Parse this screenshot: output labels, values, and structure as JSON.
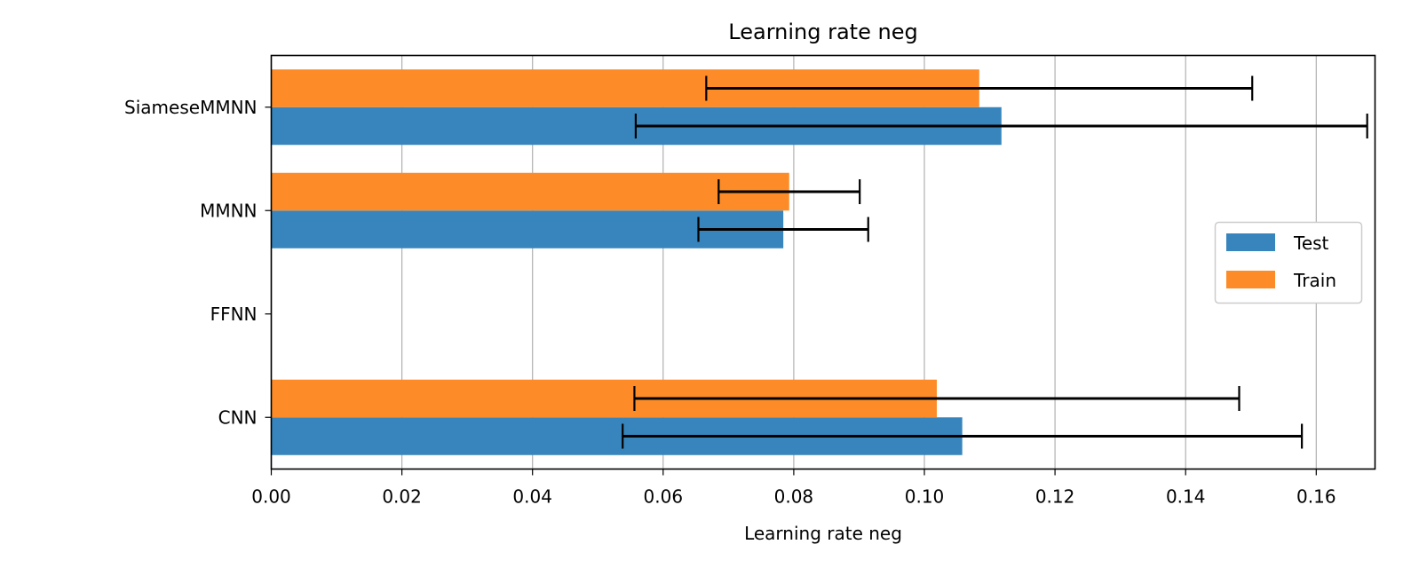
{
  "chart_data": {
    "type": "bar",
    "orientation": "horizontal",
    "title": "Learning rate neg",
    "xlabel": "Learning rate neg",
    "ylabel": "",
    "xlim": [
      0.0,
      0.169
    ],
    "x_ticks": [
      "0.00",
      "0.02",
      "0.04",
      "0.06",
      "0.08",
      "0.10",
      "0.12",
      "0.14",
      "0.16"
    ],
    "categories": [
      "CNN",
      "FFNN",
      "MMNN",
      "SiameseMMNN"
    ],
    "grid": "vertical",
    "legend_position": "center-right",
    "series": [
      {
        "name": "Test",
        "color": "#3785bc",
        "values": [
          0.1058,
          null,
          0.0784,
          0.1118
        ],
        "error": [
          0.052,
          null,
          0.013,
          0.056
        ]
      },
      {
        "name": "Train",
        "color": "#fd8b28",
        "values": [
          0.1019,
          null,
          0.0793,
          0.1084
        ],
        "error": [
          0.0463,
          null,
          0.0108,
          0.0418
        ]
      }
    ]
  }
}
